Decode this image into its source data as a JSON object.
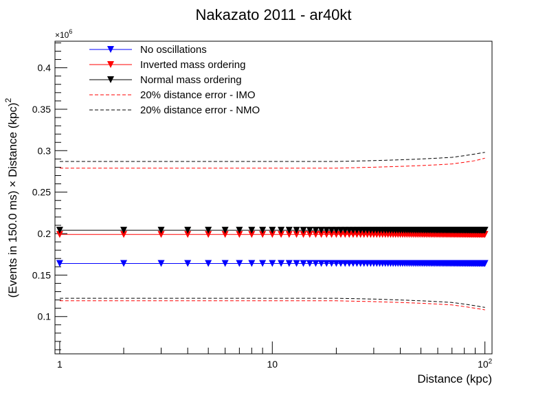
{
  "chart_data": {
    "type": "line",
    "title": "Nakazato 2011 - ar40kt",
    "xlabel": "Distance (kpc)",
    "ylabel_parts": [
      "(Events in 150.0 ms) ",
      "×",
      " Distance (kpc)",
      "2"
    ],
    "y_multiplier_base": "×10",
    "y_multiplier_exp": "6",
    "x_scale": "log",
    "xlim": [
      0.95,
      108
    ],
    "ylim": [
      0.055,
      0.432
    ],
    "x_tick_labels": [
      {
        "value": 1,
        "base": "1",
        "exp": ""
      },
      {
        "value": 10,
        "base": "10",
        "exp": ""
      },
      {
        "value": 100,
        "base": "10",
        "exp": "2"
      }
    ],
    "y_ticks": [
      0.1,
      0.15,
      0.2,
      0.25,
      0.3,
      0.35,
      0.4
    ],
    "y_tick_labels": [
      "0.1",
      "0.15",
      "0.2",
      "0.25",
      "0.3",
      "0.35",
      "0.4"
    ],
    "grid": false,
    "legend_position": "top-left",
    "colors": {
      "blue": "#0000ff",
      "red": "#ff0000",
      "black": "#000000"
    },
    "marker": "triangle-down",
    "series": [
      {
        "name": "No oscillations",
        "color": "#0000ff",
        "style": "solid-marker",
        "x_range": [
          1,
          100
        ],
        "x_step": 1,
        "y": 0.164
      },
      {
        "name": "Inverted mass ordering",
        "color": "#ff0000",
        "style": "solid-marker",
        "x_range": [
          1,
          100
        ],
        "x_step": 1,
        "y": 0.199
      },
      {
        "name": "Normal mass ordering",
        "color": "#000000",
        "style": "solid-marker",
        "x_range": [
          1,
          100
        ],
        "x_step": 1,
        "y": 0.204
      },
      {
        "name": "20% distance error - IMO",
        "color": "#ff0000",
        "style": "dashed",
        "x": [
          1,
          10,
          20,
          30,
          40,
          50,
          60,
          70,
          80,
          90,
          100
        ],
        "upper": [
          0.279,
          0.279,
          0.279,
          0.28,
          0.281,
          0.282,
          0.283,
          0.284,
          0.286,
          0.288,
          0.291
        ],
        "lower": [
          0.119,
          0.119,
          0.119,
          0.118,
          0.117,
          0.116,
          0.115,
          0.114,
          0.112,
          0.11,
          0.108
        ]
      },
      {
        "name": "20% distance error - NMO",
        "color": "#000000",
        "style": "dashed",
        "x": [
          1,
          10,
          20,
          30,
          40,
          50,
          60,
          70,
          80,
          90,
          100
        ],
        "upper": [
          0.287,
          0.287,
          0.287,
          0.288,
          0.289,
          0.29,
          0.291,
          0.292,
          0.294,
          0.296,
          0.298
        ],
        "lower": [
          0.122,
          0.122,
          0.122,
          0.121,
          0.12,
          0.119,
          0.118,
          0.117,
          0.115,
          0.113,
          0.111
        ]
      }
    ]
  }
}
